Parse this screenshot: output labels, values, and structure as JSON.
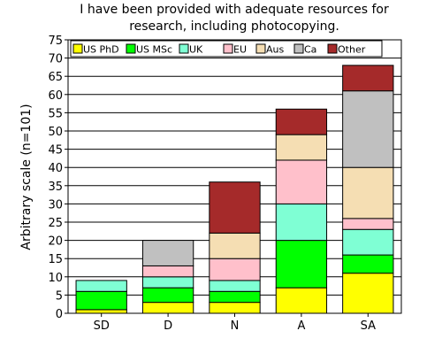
{
  "chart_data": {
    "type": "bar",
    "stacked": true,
    "title": "I have been provided with adequate resources for\nresearch, including photocopying.",
    "ylabel": "Arbitrary scale (n=101)",
    "xlabel": "",
    "ylim": [
      0,
      75
    ],
    "ytick_step": 5,
    "grid": true,
    "legend_position": "top",
    "categories": [
      "SD",
      "D",
      "N",
      "A",
      "SA"
    ],
    "series": [
      {
        "name": "US PhD",
        "color": "#ffff00",
        "values": [
          1,
          3,
          3,
          7,
          11
        ]
      },
      {
        "name": "US MSc",
        "color": "#00ff00",
        "values": [
          5,
          4,
          3,
          13,
          5
        ]
      },
      {
        "name": "UK",
        "color": "#7fffd4",
        "values": [
          3,
          3,
          3,
          10,
          7
        ]
      },
      {
        "name": "EU",
        "color": "#ffc0cb",
        "values": [
          0,
          3,
          6,
          12,
          3
        ]
      },
      {
        "name": "Aus",
        "color": "#f5deb3",
        "values": [
          0,
          0,
          7,
          7,
          14
        ]
      },
      {
        "name": "Ca",
        "color": "#c0c0c0",
        "values": [
          0,
          7,
          0,
          0,
          21
        ]
      },
      {
        "name": "Other",
        "color": "#a52a2a",
        "values": [
          0,
          0,
          14,
          7,
          7
        ]
      }
    ]
  }
}
